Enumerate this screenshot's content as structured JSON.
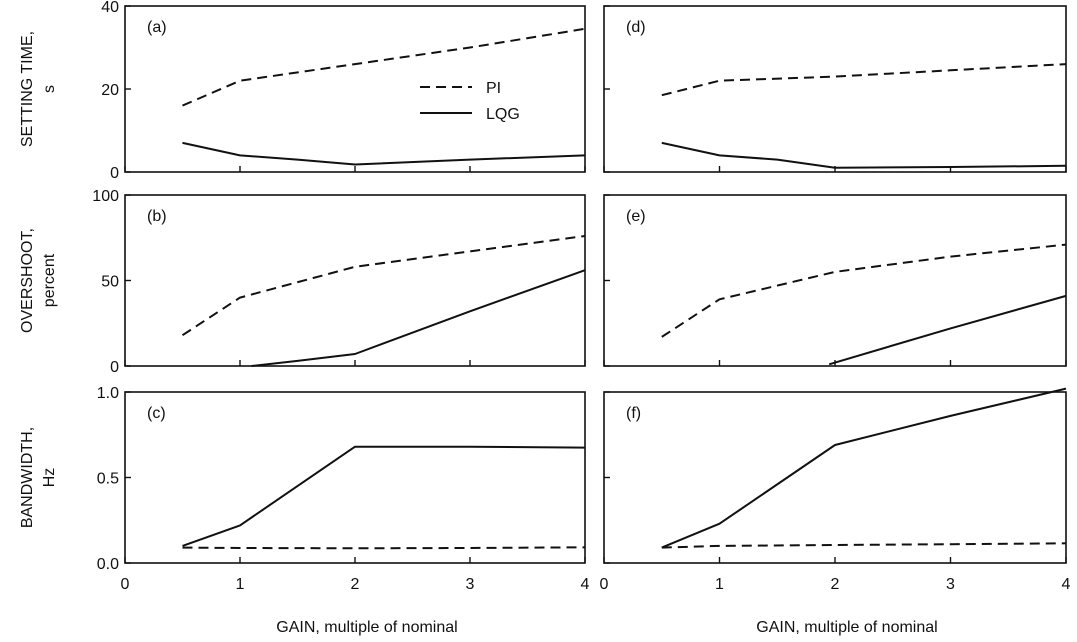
{
  "chart_data": [
    {
      "type": "line",
      "panel_label": "(a)",
      "x_label": "",
      "y_label": [
        "SETTING TIME,",
        "s"
      ],
      "xlim": [
        0,
        4
      ],
      "ylim": [
        0,
        40
      ],
      "x_ticks": [
        0,
        1,
        2,
        3,
        4
      ],
      "x_tick_labels": [],
      "y_ticks": [
        0,
        20,
        40
      ],
      "y_tick_labels": [
        "0",
        "20",
        "40"
      ],
      "legend": {
        "show": true,
        "position": "center",
        "entries": [
          {
            "name": "PI",
            "style": "dashed"
          },
          {
            "name": "LQG",
            "style": "solid"
          }
        ]
      },
      "series": [
        {
          "name": "PI",
          "style": "dashed",
          "x": [
            0.5,
            1,
            2,
            3,
            4
          ],
          "y": [
            16,
            22,
            26,
            30,
            34.5
          ]
        },
        {
          "name": "LQG",
          "style": "solid",
          "x": [
            0.5,
            1,
            1.5,
            2,
            3,
            4
          ],
          "y": [
            7,
            4,
            3,
            1.8,
            3,
            4
          ]
        }
      ]
    },
    {
      "type": "line",
      "panel_label": "(b)",
      "x_label": "",
      "y_label": [
        "OVERSHOOT,",
        "percent"
      ],
      "xlim": [
        0,
        4
      ],
      "ylim": [
        0,
        100
      ],
      "x_ticks": [
        0,
        1,
        2,
        3,
        4
      ],
      "x_tick_labels": [],
      "y_ticks": [
        0,
        50,
        100
      ],
      "y_tick_labels": [
        "0",
        "50",
        "100"
      ],
      "legend": {
        "show": false
      },
      "series": [
        {
          "name": "PI",
          "style": "dashed",
          "x": [
            0.5,
            1,
            2,
            3,
            4
          ],
          "y": [
            18,
            40,
            58,
            67,
            76
          ]
        },
        {
          "name": "LQG",
          "style": "solid",
          "x": [
            1.1,
            1.5,
            2,
            3,
            4
          ],
          "y": [
            0,
            3,
            7,
            32,
            56
          ]
        }
      ]
    },
    {
      "type": "line",
      "panel_label": "(c)",
      "x_label": "GAIN, multiple of nominal",
      "y_label": [
        "BANDWIDTH,",
        "Hz"
      ],
      "xlim": [
        0,
        4
      ],
      "ylim": [
        0,
        1
      ],
      "x_ticks": [
        0,
        1,
        2,
        3,
        4
      ],
      "x_tick_labels": [
        "0",
        "1",
        "2",
        "3",
        "4"
      ],
      "y_ticks": [
        0,
        0.5,
        1
      ],
      "y_tick_labels": [
        "0.0",
        "0.5",
        "1.0"
      ],
      "legend": {
        "show": false
      },
      "series": [
        {
          "name": "PI",
          "style": "dashed",
          "x": [
            0.5,
            1,
            2,
            3,
            4
          ],
          "y": [
            0.09,
            0.088,
            0.086,
            0.088,
            0.092
          ]
        },
        {
          "name": "LQG",
          "style": "solid",
          "x": [
            0.5,
            1,
            2,
            3,
            4
          ],
          "y": [
            0.1,
            0.22,
            0.68,
            0.68,
            0.675
          ]
        }
      ]
    },
    {
      "type": "line",
      "panel_label": "(d)",
      "x_label": "",
      "y_label": [],
      "xlim": [
        0,
        4
      ],
      "ylim": [
        0,
        40
      ],
      "x_ticks": [
        0,
        1,
        2,
        3,
        4
      ],
      "x_tick_labels": [],
      "y_ticks": [
        0,
        20,
        40
      ],
      "y_tick_labels": [],
      "legend": {
        "show": false
      },
      "series": [
        {
          "name": "PI",
          "style": "dashed",
          "x": [
            0.5,
            1,
            2,
            3,
            4
          ],
          "y": [
            18.5,
            22,
            23,
            24.5,
            26
          ]
        },
        {
          "name": "LQG",
          "style": "solid",
          "x": [
            0.5,
            1,
            1.5,
            2,
            3,
            4
          ],
          "y": [
            7,
            4,
            3,
            1,
            1.2,
            1.5
          ]
        }
      ]
    },
    {
      "type": "line",
      "panel_label": "(e)",
      "x_label": "",
      "y_label": [],
      "xlim": [
        0,
        4
      ],
      "ylim": [
        0,
        100
      ],
      "x_ticks": [
        0,
        1,
        2,
        3,
        4
      ],
      "x_tick_labels": [],
      "y_ticks": [
        0,
        50,
        100
      ],
      "y_tick_labels": [],
      "legend": {
        "show": false
      },
      "series": [
        {
          "name": "PI",
          "style": "dashed",
          "x": [
            0.5,
            1,
            2,
            3,
            4
          ],
          "y": [
            17,
            39,
            55,
            64,
            71
          ]
        },
        {
          "name": "LQG",
          "style": "solid",
          "x": [
            1.95,
            3,
            4
          ],
          "y": [
            1,
            22,
            41
          ]
        }
      ]
    },
    {
      "type": "line",
      "panel_label": "(f)",
      "x_label": "GAIN, multiple of nominal",
      "y_label": [],
      "xlim": [
        0,
        4
      ],
      "ylim": [
        0,
        1
      ],
      "x_ticks": [
        0,
        1,
        2,
        3,
        4
      ],
      "x_tick_labels": [
        "0",
        "1",
        "2",
        "3",
        "4"
      ],
      "y_ticks": [
        0,
        0.5,
        1
      ],
      "y_tick_labels": [],
      "legend": {
        "show": false
      },
      "series": [
        {
          "name": "PI",
          "style": "dashed",
          "x": [
            0.5,
            1,
            2,
            3,
            4
          ],
          "y": [
            0.09,
            0.1,
            0.105,
            0.11,
            0.115
          ]
        },
        {
          "name": "LQG",
          "style": "solid",
          "x": [
            0.5,
            1,
            2,
            3,
            4
          ],
          "y": [
            0.09,
            0.23,
            0.69,
            0.86,
            1.02
          ]
        }
      ]
    }
  ]
}
